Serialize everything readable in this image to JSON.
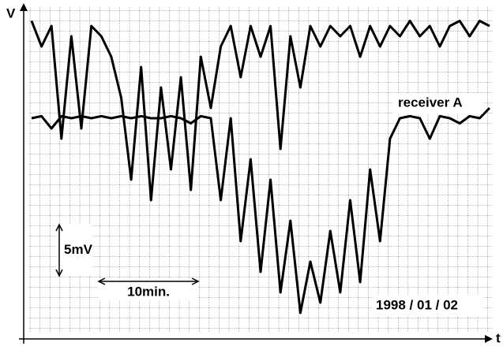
{
  "chart_data": {
    "type": "line",
    "x_label": "t",
    "y_label": "V",
    "x": [
      0,
      1,
      2,
      3,
      4,
      5,
      6,
      7,
      8,
      9,
      10,
      11,
      12,
      13,
      14,
      15,
      16,
      17,
      18,
      19,
      20,
      21,
      22,
      23,
      24,
      25,
      26,
      27,
      28,
      29,
      30,
      31,
      32,
      33,
      34,
      35,
      36,
      37,
      38,
      39,
      40,
      41,
      42,
      43,
      44,
      45,
      46
    ],
    "series": [
      {
        "color": "#000000",
        "values": [
          29.5,
          27,
          29,
          18,
          28,
          19,
          29,
          28,
          26,
          22,
          14,
          25,
          12,
          23,
          15,
          24,
          13,
          26,
          21,
          27,
          29,
          24,
          29,
          26,
          29,
          17,
          28,
          23,
          29,
          27,
          29,
          28,
          29,
          26,
          29,
          27,
          29,
          28,
          29.5,
          28,
          29,
          27,
          29,
          29.5,
          28,
          29.5,
          29
        ]
      },
      {
        "name": "receiver A",
        "color": "#000000",
        "values": [
          20,
          20.2,
          19,
          20.2,
          20,
          20.2,
          20,
          20.2,
          20,
          20.2,
          20,
          20.2,
          20,
          20,
          20.2,
          20,
          19.5,
          20.2,
          20,
          12,
          20,
          8,
          16,
          5,
          14,
          3,
          10,
          1,
          6,
          2,
          9,
          3,
          12,
          4,
          15,
          8,
          18,
          20,
          20.2,
          20,
          18,
          20.2,
          20,
          19.5,
          20.2,
          20,
          21
        ]
      }
    ],
    "xlim": [
      0,
      46
    ],
    "ylim": [
      0,
      30
    ],
    "grid": true,
    "scale_bars": [
      {
        "label": "5mV",
        "value": 5,
        "axis": "y"
      },
      {
        "label": "10min.",
        "value": 10,
        "axis": "x"
      }
    ],
    "date": "1998 / 01 / 02"
  }
}
